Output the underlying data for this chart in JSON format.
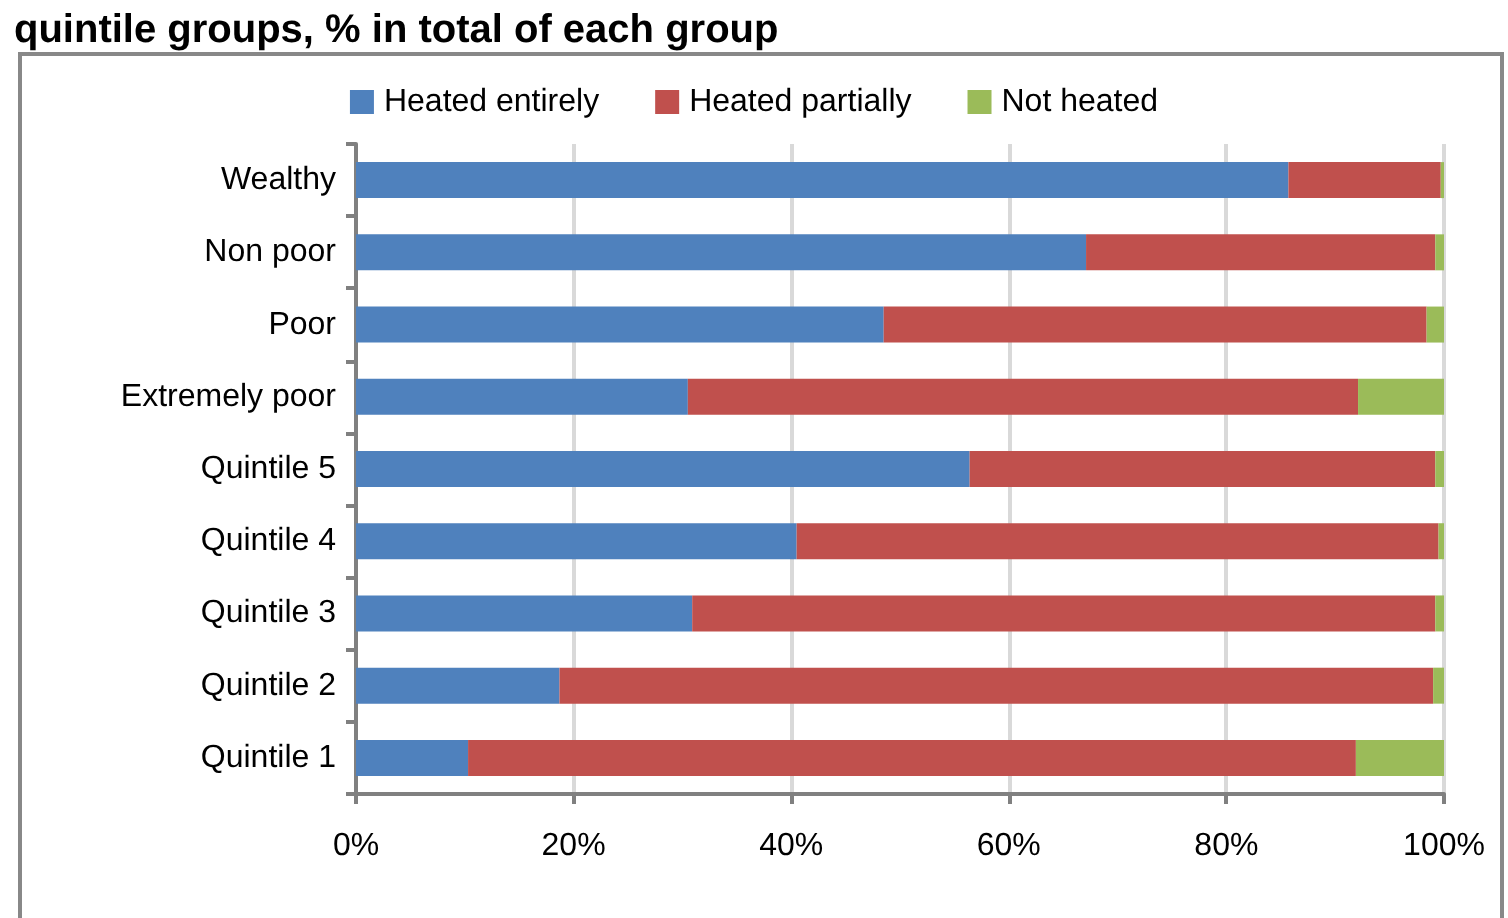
{
  "chart_data": {
    "type": "bar",
    "orientation": "horizontal",
    "stacked": true,
    "title": "quintile groups, % in total of each group",
    "categories": [
      "Wealthy",
      "Non poor",
      "Poor",
      "Extremely poor",
      "Quintile 5",
      "Quintile 4",
      "Quintile 3",
      "Quintile 2",
      "Quintile 1"
    ],
    "series": [
      {
        "name": "Heated entirely",
        "color": "#4f81bd",
        "values": [
          85.7,
          67.1,
          48.5,
          30.5,
          56.4,
          40.5,
          30.9,
          18.7,
          10.3
        ]
      },
      {
        "name": "Heated partially",
        "color": "#c0504d",
        "values": [
          14.0,
          32.1,
          49.9,
          61.6,
          42.8,
          59.0,
          68.3,
          80.3,
          81.6
        ]
      },
      {
        "name": "Not heated",
        "color": "#9bbb59",
        "values": [
          0.3,
          0.8,
          1.6,
          7.9,
          0.8,
          0.5,
          0.8,
          1.0,
          8.1
        ]
      }
    ],
    "xlim": [
      0,
      100
    ],
    "xticks": [
      {
        "value": 0,
        "label": "0%"
      },
      {
        "value": 20,
        "label": "20%"
      },
      {
        "value": 40,
        "label": "40%"
      },
      {
        "value": 60,
        "label": "60%"
      },
      {
        "value": 80,
        "label": "80%"
      },
      {
        "value": 100,
        "label": "100%"
      }
    ],
    "grid": "x",
    "legend": "top"
  }
}
